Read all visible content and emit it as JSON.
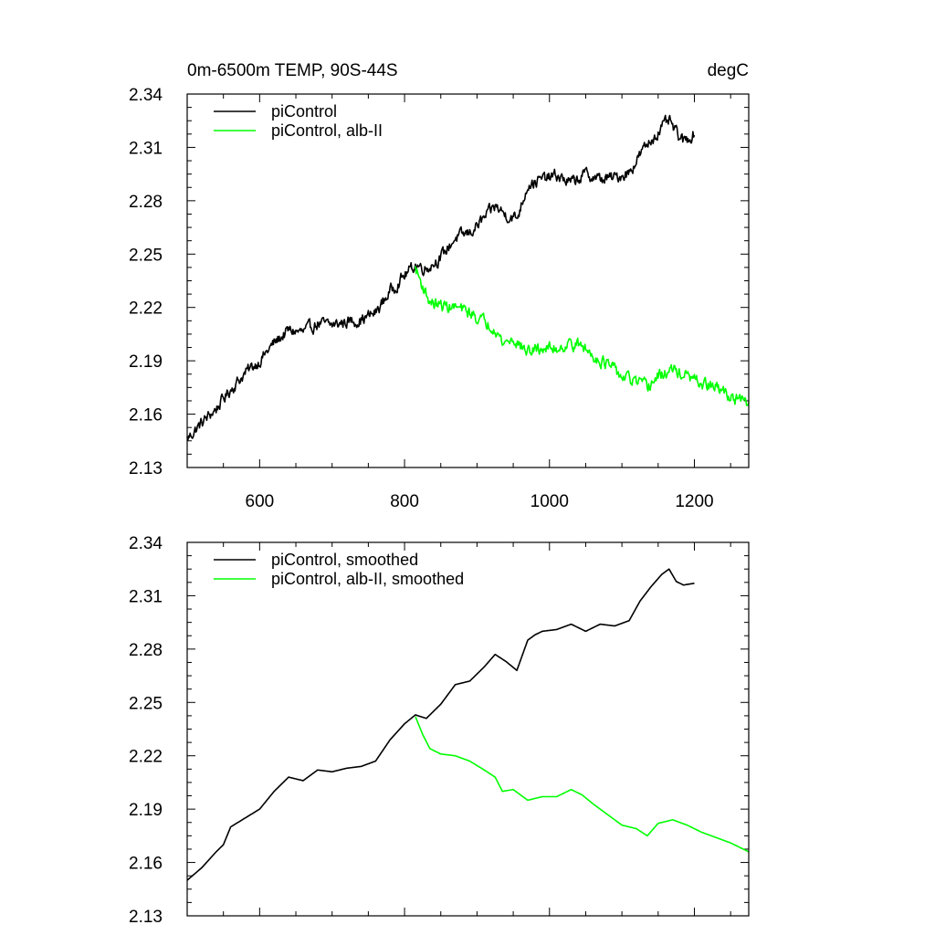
{
  "chart_data": [
    {
      "type": "line",
      "title_left": "0m-6500m TEMP, 90S-44S",
      "title_right": "degC",
      "xlim": [
        500,
        1275
      ],
      "ylim": [
        2.13,
        2.34
      ],
      "x_ticks": [
        600,
        800,
        1000,
        1200
      ],
      "x_tick_labels": [
        "600",
        "800",
        "1000",
        "1200"
      ],
      "y_ticks": [
        2.13,
        2.16,
        2.19,
        2.22,
        2.25,
        2.28,
        2.31,
        2.34
      ],
      "y_tick_labels": [
        "2.13",
        "2.16",
        "2.19",
        "2.22",
        "2.25",
        "2.28",
        "2.31",
        "2.34"
      ],
      "legend_position": "top-left",
      "series": [
        {
          "name": "piControl",
          "color": "#000000",
          "noise": 0.0028,
          "x": [
            500,
            520,
            540,
            560,
            580,
            600,
            620,
            640,
            660,
            680,
            700,
            720,
            740,
            760,
            780,
            800,
            815,
            830,
            850,
            870,
            890,
            910,
            925,
            940,
            955,
            970,
            990,
            1010,
            1030,
            1050,
            1070,
            1090,
            1110,
            1125,
            1140,
            1155,
            1165,
            1175,
            1185,
            1200
          ],
          "y": [
            2.146,
            2.155,
            2.163,
            2.174,
            2.183,
            2.19,
            2.2,
            2.207,
            2.206,
            2.211,
            2.21,
            2.212,
            2.213,
            2.217,
            2.229,
            2.238,
            2.244,
            2.242,
            2.248,
            2.259,
            2.262,
            2.27,
            2.277,
            2.272,
            2.27,
            2.289,
            2.292,
            2.294,
            2.29,
            2.295,
            2.292,
            2.293,
            2.296,
            2.306,
            2.314,
            2.321,
            2.325,
            2.318,
            2.313,
            2.318
          ]
        },
        {
          "name": "piControl, alb-II",
          "color": "#00ff00",
          "noise": 0.0028,
          "x": [
            815,
            825,
            835,
            850,
            870,
            890,
            910,
            925,
            935,
            950,
            970,
            990,
            1010,
            1030,
            1045,
            1060,
            1080,
            1100,
            1120,
            1135,
            1150,
            1170,
            1190,
            1210,
            1230,
            1250,
            1275
          ],
          "y": [
            2.242,
            2.232,
            2.223,
            2.221,
            2.22,
            2.217,
            2.212,
            2.209,
            2.2,
            2.202,
            2.195,
            2.197,
            2.197,
            2.2,
            2.198,
            2.193,
            2.188,
            2.181,
            2.178,
            2.175,
            2.181,
            2.185,
            2.181,
            2.177,
            2.175,
            2.17,
            2.165
          ]
        }
      ]
    },
    {
      "type": "line",
      "xlim": [
        500,
        1275
      ],
      "ylim": [
        2.13,
        2.34
      ],
      "x_ticks": [
        600,
        800,
        1000,
        1200
      ],
      "y_ticks": [
        2.13,
        2.16,
        2.19,
        2.22,
        2.25,
        2.28,
        2.31,
        2.34
      ],
      "y_tick_labels": [
        "2.13",
        "2.16",
        "2.19",
        "2.22",
        "2.25",
        "2.28",
        "2.31",
        "2.34"
      ],
      "legend_position": "top-left",
      "series": [
        {
          "name": "piControl, smoothed",
          "color": "#000000",
          "noise": 0.0,
          "x": [
            500,
            520,
            540,
            550,
            560,
            580,
            600,
            620,
            640,
            660,
            680,
            700,
            720,
            740,
            760,
            780,
            800,
            815,
            830,
            850,
            870,
            890,
            910,
            925,
            940,
            955,
            970,
            980,
            990,
            1010,
            1030,
            1050,
            1070,
            1090,
            1110,
            1125,
            1140,
            1155,
            1165,
            1175,
            1185,
            1200
          ],
          "y": [
            2.15,
            2.157,
            2.166,
            2.17,
            2.18,
            2.185,
            2.19,
            2.2,
            2.208,
            2.206,
            2.212,
            2.211,
            2.213,
            2.214,
            2.217,
            2.229,
            2.238,
            2.243,
            2.241,
            2.249,
            2.26,
            2.262,
            2.27,
            2.277,
            2.273,
            2.268,
            2.285,
            2.288,
            2.29,
            2.291,
            2.294,
            2.29,
            2.294,
            2.293,
            2.296,
            2.307,
            2.315,
            2.322,
            2.325,
            2.318,
            2.316,
            2.317
          ]
        },
        {
          "name": "piControl, alb-II, smoothed",
          "color": "#00ff00",
          "noise": 0.0,
          "x": [
            815,
            825,
            835,
            850,
            870,
            890,
            910,
            925,
            935,
            950,
            970,
            990,
            1010,
            1030,
            1045,
            1060,
            1080,
            1100,
            1120,
            1135,
            1150,
            1170,
            1190,
            1210,
            1230,
            1250,
            1275
          ],
          "y": [
            2.242,
            2.232,
            2.224,
            2.221,
            2.22,
            2.217,
            2.212,
            2.208,
            2.2,
            2.201,
            2.195,
            2.197,
            2.197,
            2.201,
            2.198,
            2.193,
            2.187,
            2.181,
            2.179,
            2.175,
            2.182,
            2.184,
            2.181,
            2.177,
            2.174,
            2.171,
            2.166
          ]
        }
      ]
    }
  ]
}
